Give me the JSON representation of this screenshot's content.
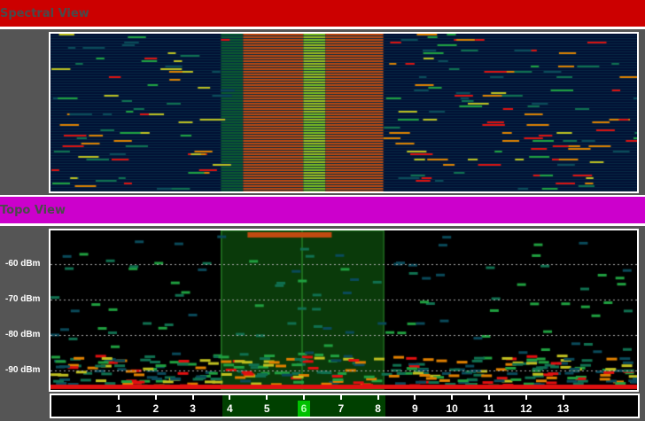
{
  "spectral": {
    "title": "Spectral View",
    "color": "#cc0000"
  },
  "topo": {
    "title": "Topo View",
    "color": "#cc00cc",
    "dbm_labels": [
      "-60 dBm",
      "-70 dBm",
      "-80 dBm",
      "-90 dBm"
    ]
  },
  "channels": {
    "labels": [
      "1",
      "2",
      "3",
      "4",
      "5",
      "6",
      "7",
      "8",
      "9",
      "10",
      "11",
      "12",
      "13"
    ],
    "selected": "6",
    "highlight_range": [
      "4",
      "8"
    ]
  }
}
